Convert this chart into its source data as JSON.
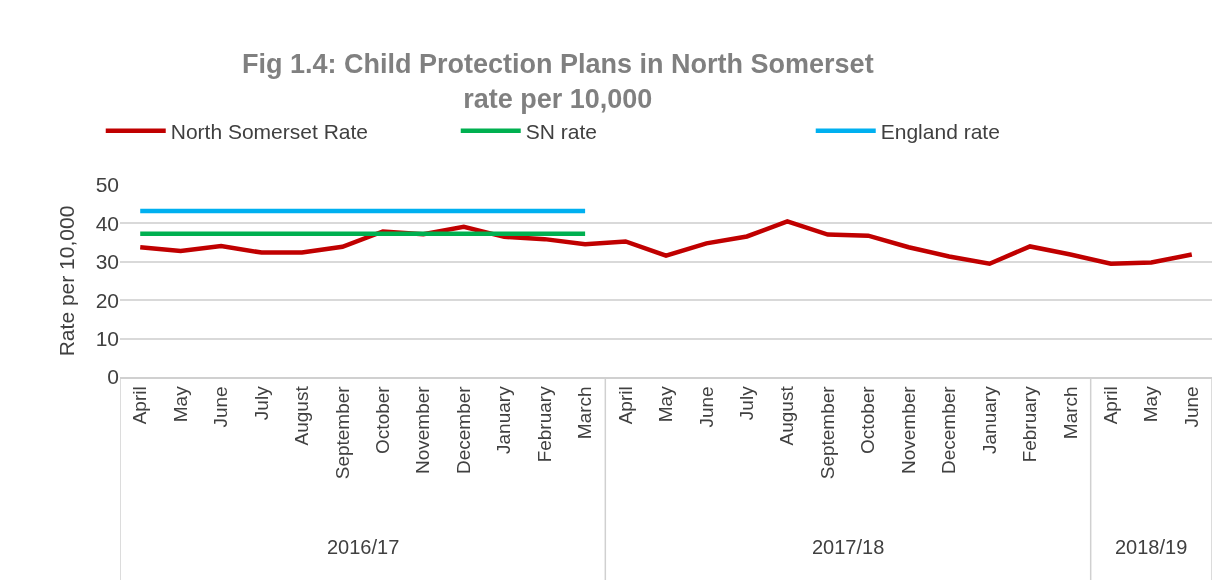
{
  "chart_data": {
    "type": "line",
    "title": "Fig 1.4: Child Protection Plans in North Somerset\nrate per 10,000",
    "ylabel": "Rate per 10,000",
    "categories": [
      "April",
      "May",
      "June",
      "July",
      "August",
      "September",
      "October",
      "November",
      "December",
      "January",
      "February",
      "March",
      "April",
      "May",
      "June",
      "July",
      "August",
      "September",
      "October",
      "November",
      "December",
      "January",
      "February",
      "March",
      "April",
      "May",
      "June"
    ],
    "annotations": [
      "2016/17",
      "2017/18",
      "2018/19"
    ],
    "series": [
      {
        "name": "North Somerset Rate",
        "color": "#c00000",
        "values": [
          33.8,
          32.8,
          34.1,
          32.4,
          32.4,
          33.9,
          37.9,
          37.2,
          39.1,
          36.5,
          35.9,
          34.6,
          35.3,
          31.6,
          34.8,
          36.6,
          40.5,
          37.1,
          36.8,
          33.8,
          31.4,
          29.5,
          34.0,
          31.9,
          29.5,
          29.8,
          31.9
        ]
      },
      {
        "name": "SN rate",
        "color": "#00b050",
        "values": [
          37.3,
          37.3,
          37.3,
          37.3,
          37.3,
          37.3,
          37.3,
          37.3,
          37.3,
          37.3,
          37.3,
          37.3,
          null,
          null,
          null,
          null,
          null,
          null,
          null,
          null,
          null,
          null,
          null,
          null,
          null,
          null,
          null
        ]
      },
      {
        "name": "England rate",
        "color": "#00b0f0",
        "values": [
          43.2,
          43.2,
          43.2,
          43.2,
          43.2,
          43.2,
          43.2,
          43.2,
          43.2,
          43.2,
          43.2,
          43.2,
          null,
          null,
          null,
          null,
          null,
          null,
          null,
          null,
          null,
          null,
          null,
          null,
          null,
          null,
          null
        ]
      }
    ],
    "ylim": [
      0,
      50
    ],
    "yticks": [
      0,
      10,
      20,
      30,
      40,
      50
    ],
    "grid": "y",
    "legend": "top",
    "marker": "none",
    "line_style": "solid"
  }
}
